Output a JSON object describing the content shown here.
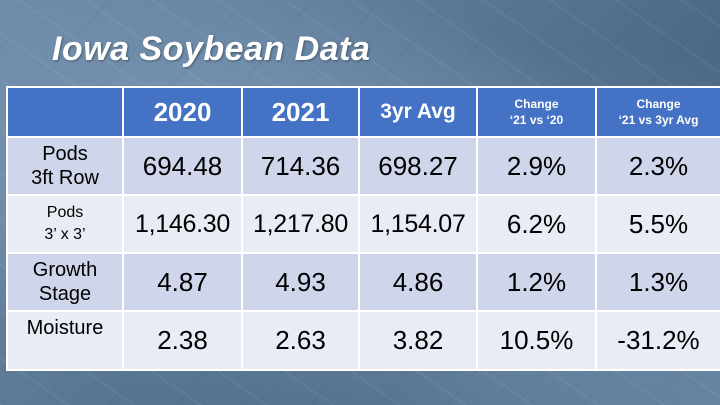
{
  "title": "Iowa Soybean Data",
  "table": {
    "headers": {
      "col1": "2020",
      "col2": "2021",
      "col3": "3yr Avg",
      "col4_line1": "Change",
      "col4_line2": "‘21 vs ‘20",
      "col5_line1": "Change",
      "col5_line2": "‘21 vs 3yr Avg"
    },
    "rows": [
      {
        "label_line1": "Pods",
        "label_line2": "3ft Row",
        "values": [
          "694.48",
          "714.36",
          "698.27",
          "2.9%",
          "2.3%"
        ]
      },
      {
        "label_line1": "Pods",
        "label_line2": "3’ x 3’",
        "values": [
          "1,146.30",
          "1,217.80",
          "1,154.07",
          "6.2%",
          "5.5%"
        ]
      },
      {
        "label_line1": "Growth",
        "label_line2": "Stage",
        "values": [
          "4.87",
          "4.93",
          "4.86",
          "1.2%",
          "1.3%"
        ]
      },
      {
        "label_line1": "Moisture",
        "values": [
          "2.38",
          "2.63",
          "3.82",
          "10.5%",
          "-31.2%"
        ]
      }
    ]
  }
}
